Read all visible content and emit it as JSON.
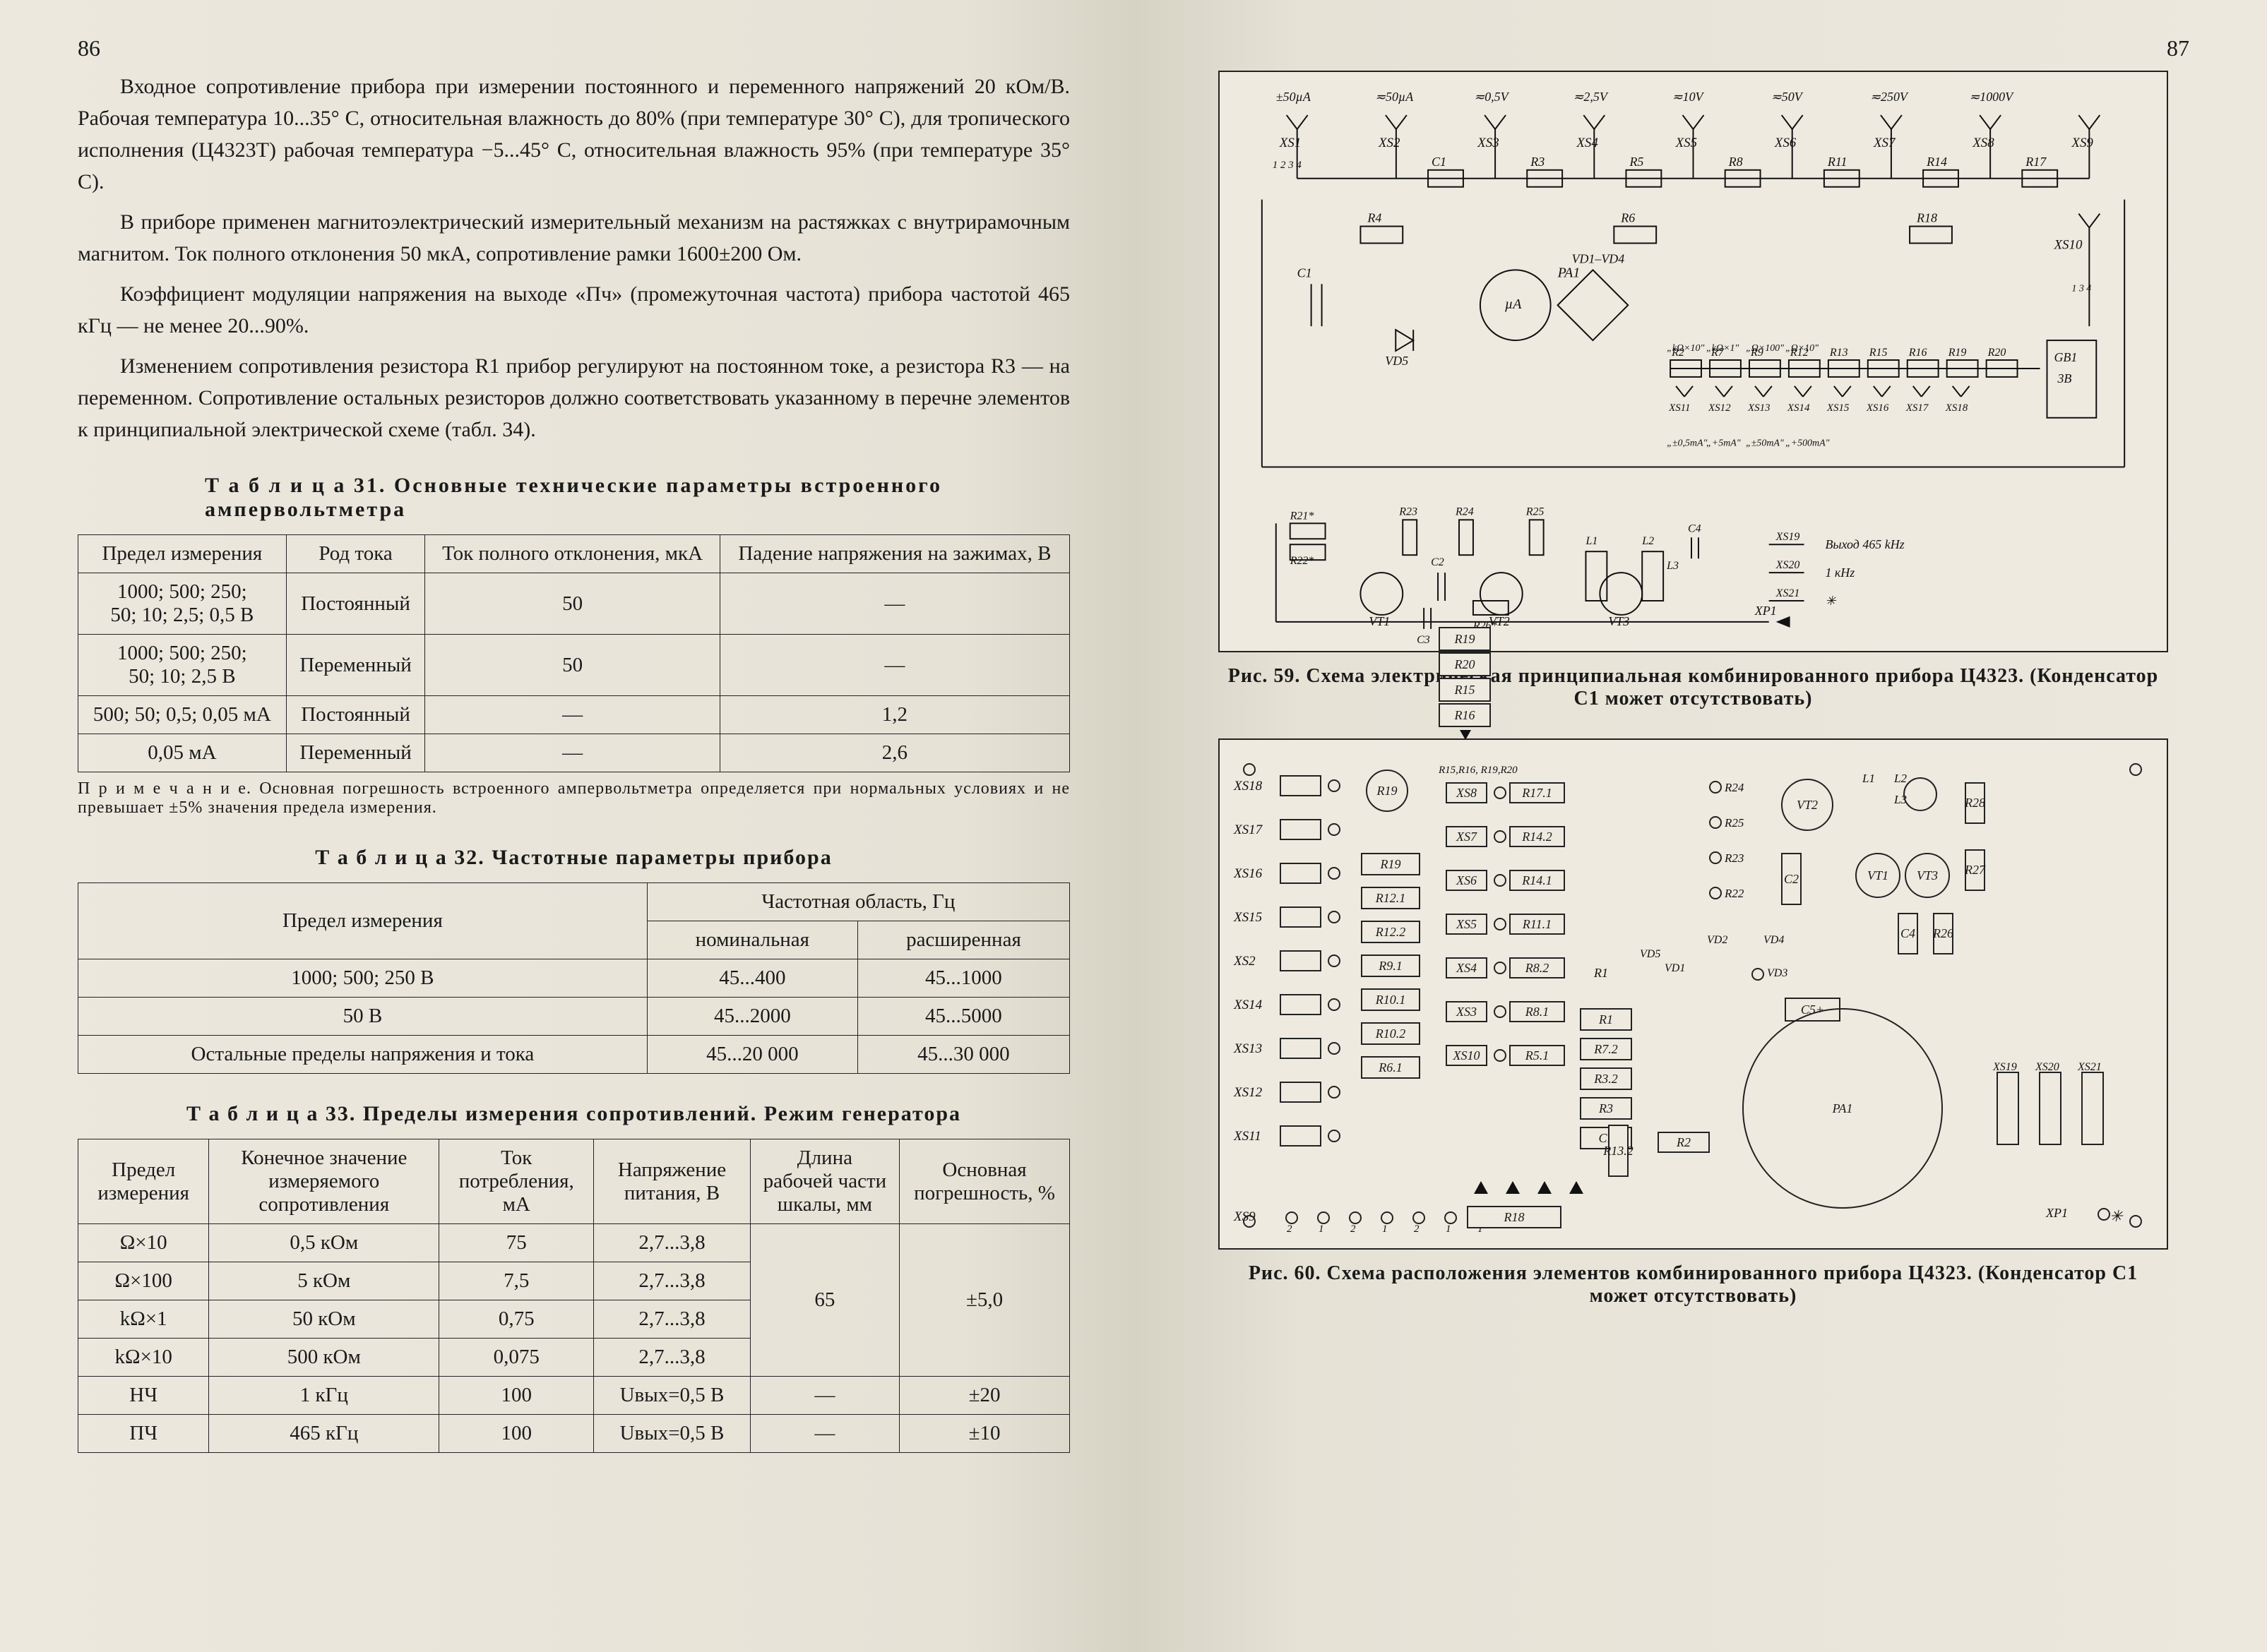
{
  "pages": {
    "left_num": "86",
    "right_num": "87"
  },
  "paragraphs": [
    "Входное сопротивление прибора при измерении постоянного и переменного напряжений 20 кОм/В. Рабочая температура 10...35° С, относительная влажность до 80% (при температуре 30° С), для тропического исполнения (Ц4323Т) рабочая температура −5...45° С, относительная влажность 95% (при температуре 35° С).",
    "В приборе применен магнитоэлектрический измерительный механизм на растяжках с внутрирамочным магнитом. Ток полного отклонения 50 мкА, сопротивление рамки 1600±200 Ом.",
    "Коэффициент модуляции напряжения на выходе «Пч» (промежуточная частота) прибора частотой 465 кГц — не менее 20...90%.",
    "Изменением сопротивления резистора R1 прибор регулируют на постоянном токе, а резистора R3 — на переменном. Сопротивление остальных резисторов должно соответствовать указанному в перечне элементов к принципиальной электрической схеме (табл. 34)."
  ],
  "table31": {
    "title": "Т а б л и ц а  31. Основные технические параметры встроенного ампервольтметра",
    "headers": [
      "Предел измерения",
      "Род тока",
      "Ток полного отклонения, мкА",
      "Падение напряжения на зажимах, В"
    ],
    "rows": [
      [
        "1000; 500; 250;\n50; 10; 2,5; 0,5 В",
        "Постоянный",
        "50",
        "—"
      ],
      [
        "1000; 500; 250;\n50; 10; 2,5 В",
        "Переменный",
        "50",
        "—"
      ],
      [
        "500; 50; 0,5; 0,05 мА",
        "Постоянный",
        "—",
        "1,2"
      ],
      [
        "0,05 мА",
        "Переменный",
        "—",
        "2,6"
      ]
    ],
    "note": "П р и м е ч а н и е. Основная погрешность встроенного ампервольтметра определяется при нормальных условиях и не превышает ±5% значения предела измерения."
  },
  "table32": {
    "title": "Т а б л и ц а  32. Частотные параметры прибора",
    "h_span": "Частотная область, Гц",
    "h_left": "Предел измерения",
    "h_nom": "номинальная",
    "h_ext": "расширенная",
    "rows": [
      [
        "1000; 500; 250 В",
        "45...400",
        "45...1000"
      ],
      [
        "50 В",
        "45...2000",
        "45...5000"
      ],
      [
        "Остальные пределы напряжения и тока",
        "45...20 000",
        "45...30 000"
      ]
    ]
  },
  "table33": {
    "title": "Т а б л и ц а  33. Пределы измерения сопротивлений. Режим генератора",
    "headers": [
      "Предел измерения",
      "Конечное значение измеряемого сопротивления",
      "Ток потребления, мА",
      "Напряжение питания, В",
      "Длина рабочей части шкалы, мм",
      "Основная погрешность, %"
    ],
    "rows": [
      [
        "Ω×10",
        "0,5 кОм",
        "75",
        "2,7...3,8",
        "",
        ""
      ],
      [
        "Ω×100",
        "5 кОм",
        "7,5",
        "2,7...3,8",
        "",
        ""
      ],
      [
        "kΩ×1",
        "50 кОм",
        "0,75",
        "2,7...3,8",
        "65",
        "±5,0"
      ],
      [
        "kΩ×10",
        "500 кОм",
        "0,075",
        "2,7...3,8",
        "",
        ""
      ],
      [
        "НЧ",
        "1 кГц",
        "100",
        "Uвых=0,5 В",
        "—",
        "±20"
      ],
      [
        "ПЧ",
        "465 кГц",
        "100",
        "Uвых=0,5 В",
        "—",
        "±10"
      ]
    ]
  },
  "fig59": {
    "caption": "Рис. 59. Схема электрическая принципиальная комбинированного прибора Ц4323. (Конденсатор С1 может отсутствовать)",
    "top_labels": [
      "±50µA",
      "≂50µA",
      "",
      "",
      "",
      "",
      ""
    ],
    "volt_labels": [
      "≂0,5V",
      "≂2,5V",
      "≂10V",
      "≂50V",
      "≂250V",
      "≂1000V"
    ],
    "xs_top": [
      "XS1",
      "XS2",
      "XS3",
      "XS4",
      "XS5",
      "XS6",
      "XS7",
      "XS8",
      "XS9"
    ],
    "r_top": [
      "C1",
      "R3",
      "R5",
      "R8",
      "R11",
      "R14",
      "R17"
    ],
    "mid_components": [
      "R4",
      "R6",
      "R18",
      "VD1–VD4",
      "VD5",
      "PA1",
      "C1",
      "R2",
      "R7",
      "R9",
      "R12",
      "R13",
      "R15",
      "R16",
      "R19",
      "R20",
      "GB1 3B"
    ],
    "xs_mid": [
      "XS11",
      "XS12",
      "XS13",
      "XS14",
      "XS15",
      "XS16",
      "XS17",
      "XS18",
      "XS10"
    ],
    "ohm_labels": [
      "„kΩ×10\"",
      "„kΩ×1\"",
      "„Ω×100\"",
      "„Ω×10\""
    ],
    "ma_labels": [
      "„±0,5mA\"",
      "„+5mA\"",
      "„±50mA\"",
      "„+500mA\""
    ],
    "osc_block": [
      "R21*",
      "R22*",
      "R23",
      "R24",
      "R25",
      "R26*",
      "C2",
      "C3",
      "C4",
      "L1",
      "L2",
      "L3",
      "VT1",
      "VT2",
      "VT3",
      "XP1"
    ],
    "outputs": [
      "XS19",
      "XS20",
      "XS21"
    ],
    "out_labels": [
      "Выход 465 kHz",
      "1 кHz",
      "✳"
    ]
  },
  "fig60": {
    "caption": "Рис. 60. Схема расположения элементов комбинированного прибора Ц4323. (Конденсатор С1 может отсутствовать)",
    "top_stack": [
      "R19",
      "R20",
      "R15",
      "R16"
    ],
    "left_xs": [
      "XS18",
      "XS17",
      "XS16",
      "XS15",
      "XS2",
      "XS14",
      "XS13",
      "XS12",
      "XS11"
    ],
    "bottom_xs": "XS9",
    "bottom_nums": [
      "2",
      "1",
      "2",
      "1",
      "2",
      "1",
      "1"
    ],
    "col1": [
      "R19",
      "R12.1",
      "R12.2",
      "R9.1",
      "R10.1",
      "R10.2",
      "R6.1",
      ""
    ],
    "col2": [
      "R15,R16,\nR19,R20",
      "R17.1",
      "R14.2",
      "R14.1",
      "R11.1",
      "R8.2",
      "R8.1",
      "R5.1"
    ],
    "col2_xs": [
      "XS8",
      "XS7",
      "XS6",
      "XS5",
      "XS4",
      "XS3",
      "XS10"
    ],
    "col3": [
      "R1",
      "R7.2",
      "R3.2",
      "R3",
      "C1"
    ],
    "col4": [
      "R13.2",
      "VD5",
      "R2"
    ],
    "col5": [
      "R24",
      "R25",
      "R23",
      "R22",
      "VD2",
      "VD1"
    ],
    "col6": [
      "VT2",
      "C2",
      "VD4",
      "VD3"
    ],
    "col7": [
      "L1",
      "L2",
      "L3",
      "VT1",
      "VT3",
      "C4",
      "R26",
      "R27",
      "R28"
    ],
    "big": "PA1",
    "osc_out": [
      "XS19",
      "XS20",
      "XS21",
      "XP1"
    ],
    "bottom_r": "R18",
    "extra": [
      "C5+"
    ]
  }
}
